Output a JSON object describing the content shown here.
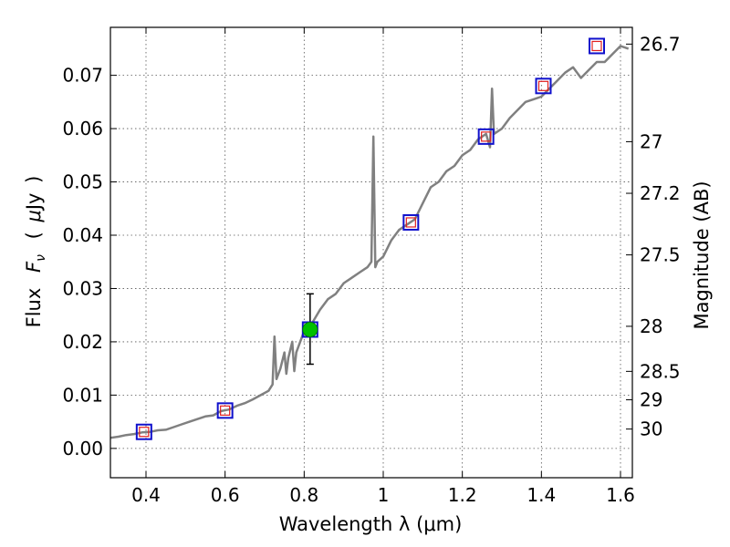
{
  "chart_data": {
    "type": "line",
    "xlabel": "Wavelength  λ (μm)",
    "ylabel_parts": [
      "Flux",
      "F",
      "ν",
      "(",
      "μ",
      "Jy",
      ")"
    ],
    "y2label": "Magnitude (AB)",
    "xlim": [
      0.31,
      1.63
    ],
    "ylim": [
      -0.0055,
      0.079
    ],
    "grid": true,
    "x_ticks": [
      0.4,
      0.6,
      0.8,
      1.0,
      1.2,
      1.4,
      1.6
    ],
    "x_tick_labels": [
      "0.4",
      "0.6",
      "0.8",
      "1",
      "1.2",
      "1.4",
      "1.6"
    ],
    "y_ticks": [
      0.0,
      0.01,
      0.02,
      0.03,
      0.04,
      0.05,
      0.06,
      0.07
    ],
    "y_tick_labels": [
      "0.00",
      "0.01",
      "0.02",
      "0.03",
      "0.04",
      "0.05",
      "0.06",
      "0.07"
    ],
    "mag_ticks": [
      26.7,
      27,
      27.2,
      27.5,
      28,
      28.5,
      29,
      30
    ],
    "mag_tick_labels": [
      "26.7",
      "27",
      "27.2",
      "27.5",
      "28",
      "28.5",
      "29",
      "30"
    ],
    "spectrum": {
      "name": "model spectrum",
      "color": "#808080",
      "x": [
        0.31,
        0.33,
        0.35,
        0.37,
        0.39,
        0.41,
        0.43,
        0.45,
        0.47,
        0.49,
        0.51,
        0.53,
        0.55,
        0.57,
        0.59,
        0.61,
        0.63,
        0.65,
        0.67,
        0.69,
        0.71,
        0.72,
        0.725,
        0.73,
        0.74,
        0.75,
        0.755,
        0.76,
        0.77,
        0.775,
        0.78,
        0.8,
        0.82,
        0.84,
        0.86,
        0.88,
        0.9,
        0.92,
        0.94,
        0.96,
        0.97,
        0.975,
        0.98,
        0.985,
        1.0,
        1.02,
        1.04,
        1.06,
        1.08,
        1.1,
        1.12,
        1.14,
        1.16,
        1.18,
        1.2,
        1.22,
        1.24,
        1.26,
        1.27,
        1.275,
        1.28,
        1.3,
        1.32,
        1.34,
        1.36,
        1.38,
        1.4,
        1.42,
        1.44,
        1.46,
        1.48,
        1.5,
        1.52,
        1.54,
        1.56,
        1.58,
        1.6,
        1.62
      ],
      "y": [
        0.002,
        0.0022,
        0.0025,
        0.0027,
        0.003,
        0.0031,
        0.0034,
        0.0035,
        0.004,
        0.0045,
        0.005,
        0.0055,
        0.006,
        0.0062,
        0.007,
        0.0073,
        0.008,
        0.0085,
        0.0092,
        0.01,
        0.0108,
        0.012,
        0.021,
        0.013,
        0.015,
        0.018,
        0.014,
        0.017,
        0.02,
        0.0145,
        0.018,
        0.022,
        0.0235,
        0.026,
        0.028,
        0.029,
        0.031,
        0.032,
        0.033,
        0.034,
        0.035,
        0.0585,
        0.034,
        0.035,
        0.036,
        0.039,
        0.041,
        0.042,
        0.043,
        0.046,
        0.049,
        0.05,
        0.052,
        0.053,
        0.055,
        0.056,
        0.058,
        0.059,
        0.0565,
        0.0675,
        0.059,
        0.06,
        0.062,
        0.0635,
        0.065,
        0.0655,
        0.066,
        0.0675,
        0.069,
        0.0705,
        0.0715,
        0.0695,
        0.071,
        0.0725,
        0.0725,
        0.074,
        0.0755,
        0.075
      ]
    },
    "photometry": [
      {
        "x": 0.395,
        "y": 0.0031
      },
      {
        "x": 0.6,
        "y": 0.0071
      },
      {
        "x": 0.815,
        "y": 0.0223
      },
      {
        "x": 1.07,
        "y": 0.0424
      },
      {
        "x": 1.26,
        "y": 0.0585
      },
      {
        "x": 1.405,
        "y": 0.068
      },
      {
        "x": 1.54,
        "y": 0.0755
      }
    ],
    "model_points": [
      {
        "x": 0.395,
        "y": 0.0031
      },
      {
        "x": 0.6,
        "y": 0.0071
      },
      {
        "x": 1.07,
        "y": 0.0424
      },
      {
        "x": 1.26,
        "y": 0.0585
      },
      {
        "x": 1.405,
        "y": 0.068
      },
      {
        "x": 1.54,
        "y": 0.0755
      }
    ],
    "measurement": {
      "x": 0.815,
      "y": 0.0223,
      "yerr_low": 0.0158,
      "yerr_high": 0.029
    },
    "colors": {
      "photometry_box": "#1010cc",
      "model_box": "#e02020",
      "measurement": "#00c000",
      "errorbar": "#000000",
      "grid": "#555555"
    }
  }
}
